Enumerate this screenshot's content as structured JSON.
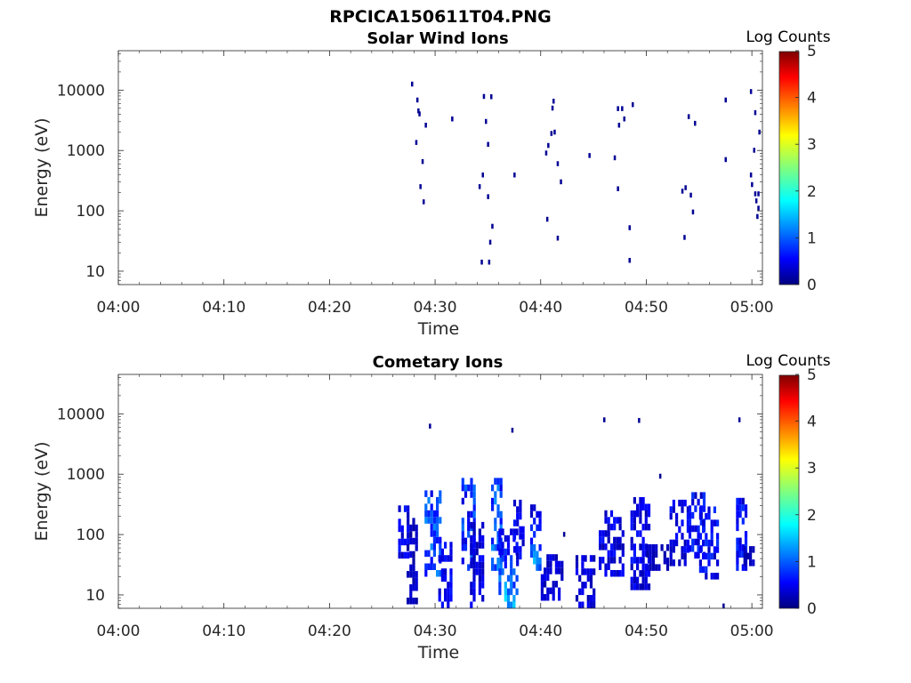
{
  "figure": {
    "title": "RPCICA150611T04.PNG"
  },
  "chart_data": [
    {
      "type": "heatmap",
      "title": "Solar Wind Ions",
      "xlabel": "Time",
      "ylabel": "Energy (eV)",
      "x_ticks": [
        "04:00",
        "04:10",
        "04:20",
        "04:30",
        "04:40",
        "04:50",
        "05:00"
      ],
      "x_range": [
        "04:00",
        "05:01"
      ],
      "y_scale": "log",
      "y_ticks": [
        10,
        100,
        1000,
        10000
      ],
      "y_tick_labels": [
        "10",
        "100",
        "1000",
        "10000"
      ],
      "y_range": [
        6,
        45000
      ],
      "colorbar": {
        "label": "Log Counts",
        "range": [
          0,
          5
        ],
        "ticks": [
          "0",
          "1",
          "2",
          "3",
          "4",
          "5"
        ],
        "colormap": "jet"
      },
      "points": [
        {
          "t": 27.8,
          "e": 12500,
          "c": 0.1
        },
        {
          "t": 28.3,
          "e": 6800,
          "c": 0.1
        },
        {
          "t": 28.4,
          "e": 4500,
          "c": 0.1
        },
        {
          "t": 28.5,
          "e": 4000,
          "c": 0.1
        },
        {
          "t": 28.2,
          "e": 1350,
          "c": 0.1
        },
        {
          "t": 28.8,
          "e": 650,
          "c": 0.1
        },
        {
          "t": 28.6,
          "e": 250,
          "c": 0.1
        },
        {
          "t": 28.9,
          "e": 140,
          "c": 0.1
        },
        {
          "t": 29.1,
          "e": 2600,
          "c": 0.1
        },
        {
          "t": 31.6,
          "e": 3300,
          "c": 0.1
        },
        {
          "t": 34.2,
          "e": 250,
          "c": 0.1
        },
        {
          "t": 34.5,
          "e": 390,
          "c": 0.1
        },
        {
          "t": 34.6,
          "e": 7800,
          "c": 0.1
        },
        {
          "t": 34.8,
          "e": 3000,
          "c": 0.1
        },
        {
          "t": 35.0,
          "e": 1250,
          "c": 0.1
        },
        {
          "t": 35.3,
          "e": 7700,
          "c": 0.1
        },
        {
          "t": 35.0,
          "e": 170,
          "c": 0.1
        },
        {
          "t": 35.4,
          "e": 55,
          "c": 0.1
        },
        {
          "t": 35.2,
          "e": 30,
          "c": 0.1
        },
        {
          "t": 34.4,
          "e": 14,
          "c": 0.1
        },
        {
          "t": 35.1,
          "e": 14,
          "c": 0.1
        },
        {
          "t": 37.5,
          "e": 390,
          "c": 0.1
        },
        {
          "t": 40.5,
          "e": 900,
          "c": 0.1
        },
        {
          "t": 40.7,
          "e": 1200,
          "c": 0.1
        },
        {
          "t": 41.0,
          "e": 1900,
          "c": 0.1
        },
        {
          "t": 41.3,
          "e": 2000,
          "c": 0.1
        },
        {
          "t": 41.1,
          "e": 5000,
          "c": 0.1
        },
        {
          "t": 41.2,
          "e": 6500,
          "c": 0.1
        },
        {
          "t": 41.6,
          "e": 600,
          "c": 0.1
        },
        {
          "t": 41.9,
          "e": 300,
          "c": 0.1
        },
        {
          "t": 40.6,
          "e": 72,
          "c": 0.1
        },
        {
          "t": 41.6,
          "e": 35,
          "c": 0.1
        },
        {
          "t": 44.6,
          "e": 820,
          "c": 0.1
        },
        {
          "t": 47.0,
          "e": 750,
          "c": 0.1
        },
        {
          "t": 47.3,
          "e": 4900,
          "c": 0.1
        },
        {
          "t": 47.7,
          "e": 4900,
          "c": 0.1
        },
        {
          "t": 47.4,
          "e": 2600,
          "c": 0.1
        },
        {
          "t": 47.9,
          "e": 3300,
          "c": 0.1
        },
        {
          "t": 48.7,
          "e": 5700,
          "c": 0.1
        },
        {
          "t": 47.3,
          "e": 230,
          "c": 0.1
        },
        {
          "t": 48.4,
          "e": 52,
          "c": 0.1
        },
        {
          "t": 48.4,
          "e": 15,
          "c": 0.1
        },
        {
          "t": 53.4,
          "e": 210,
          "c": 0.1
        },
        {
          "t": 53.7,
          "e": 240,
          "c": 0.1
        },
        {
          "t": 54.2,
          "e": 180,
          "c": 0.1
        },
        {
          "t": 54.4,
          "e": 95,
          "c": 0.1
        },
        {
          "t": 53.6,
          "e": 36,
          "c": 0.1
        },
        {
          "t": 54.0,
          "e": 3600,
          "c": 0.1
        },
        {
          "t": 54.6,
          "e": 2800,
          "c": 0.1
        },
        {
          "t": 57.5,
          "e": 6800,
          "c": 0.1
        },
        {
          "t": 57.5,
          "e": 700,
          "c": 0.1
        },
        {
          "t": 59.9,
          "e": 9400,
          "c": 0.1
        },
        {
          "t": 60.3,
          "e": 4200,
          "c": 0.1
        },
        {
          "t": 60.7,
          "e": 2000,
          "c": 0.1
        },
        {
          "t": 60.2,
          "e": 1000,
          "c": 0.1
        },
        {
          "t": 59.9,
          "e": 390,
          "c": 0.1
        },
        {
          "t": 60.0,
          "e": 270,
          "c": 0.1
        },
        {
          "t": 60.3,
          "e": 190,
          "c": 0.1
        },
        {
          "t": 60.6,
          "e": 190,
          "c": 0.1
        },
        {
          "t": 60.4,
          "e": 145,
          "c": 0.1
        },
        {
          "t": 60.6,
          "e": 110,
          "c": 0.1
        },
        {
          "t": 60.5,
          "e": 80,
          "c": 0.1
        }
      ]
    },
    {
      "type": "heatmap",
      "title": "Cometary Ions",
      "xlabel": "Time",
      "ylabel": "Energy (eV)",
      "x_ticks": [
        "04:00",
        "04:10",
        "04:20",
        "04:30",
        "04:40",
        "04:50",
        "05:00"
      ],
      "x_range": [
        "04:00",
        "05:01"
      ],
      "y_scale": "log",
      "y_ticks": [
        10,
        100,
        1000,
        10000
      ],
      "y_tick_labels": [
        "10",
        "100",
        "1000",
        "10000"
      ],
      "y_range": [
        6,
        45000
      ],
      "colorbar": {
        "label": "Log Counts",
        "range": [
          0,
          5
        ],
        "ticks": [
          "0",
          "1",
          "2",
          "3",
          "4",
          "5"
        ],
        "colormap": "jet"
      },
      "bursts": [
        {
          "t0": 26.5,
          "t1": 27.5,
          "e_lo": 40,
          "e_hi": 250,
          "c": 0.5
        },
        {
          "t0": 27.3,
          "t1": 28.3,
          "e_lo": 7,
          "e_hi": 150,
          "c": 0.3
        },
        {
          "t0": 29.0,
          "t1": 30.5,
          "e_lo": 20,
          "e_hi": 500,
          "c": 0.9
        },
        {
          "t0": 30.3,
          "t1": 31.5,
          "e_lo": 6,
          "e_hi": 60,
          "c": 0.5
        },
        {
          "t0": 32.5,
          "t1": 33.6,
          "e_lo": 25,
          "e_hi": 800,
          "c": 0.8
        },
        {
          "t0": 33.3,
          "t1": 34.5,
          "e_lo": 6,
          "e_hi": 150,
          "c": 0.5
        },
        {
          "t0": 35.3,
          "t1": 36.3,
          "e_lo": 25,
          "e_hi": 700,
          "c": 0.9
        },
        {
          "t0": 36.0,
          "t1": 37.8,
          "e_lo": 6,
          "e_hi": 100,
          "c": 1.5
        },
        {
          "t0": 37.4,
          "t1": 38.3,
          "e_lo": 30,
          "e_hi": 300,
          "c": 0.5
        },
        {
          "t0": 39.0,
          "t1": 40.0,
          "e_lo": 25,
          "e_hi": 250,
          "c": 1.3
        },
        {
          "t0": 40.0,
          "t1": 42.0,
          "e_lo": 8,
          "e_hi": 45,
          "c": 0.4
        },
        {
          "t0": 43.3,
          "t1": 45.0,
          "e_lo": 6,
          "e_hi": 45,
          "c": 0.4
        },
        {
          "t0": 45.5,
          "t1": 47.8,
          "e_lo": 20,
          "e_hi": 250,
          "c": 0.5
        },
        {
          "t0": 48.5,
          "t1": 50.2,
          "e_lo": 12,
          "e_hi": 400,
          "c": 0.5
        },
        {
          "t0": 50.0,
          "t1": 52.0,
          "e_lo": 25,
          "e_hi": 60,
          "c": 0.3
        },
        {
          "t0": 52.2,
          "t1": 54.0,
          "e_lo": 30,
          "e_hi": 300,
          "c": 0.5
        },
        {
          "t0": 54.0,
          "t1": 55.6,
          "e_lo": 40,
          "e_hi": 500,
          "c": 0.6
        },
        {
          "t0": 55.0,
          "t1": 56.8,
          "e_lo": 18,
          "e_hi": 250,
          "c": 0.6
        },
        {
          "t0": 58.5,
          "t1": 59.4,
          "e_lo": 25,
          "e_hi": 400,
          "c": 0.6
        },
        {
          "t0": 59.2,
          "t1": 60.2,
          "e_lo": 30,
          "e_hi": 60,
          "c": 0.3
        }
      ],
      "points": [
        {
          "t": 29.5,
          "e": 6200,
          "c": 0.1
        },
        {
          "t": 37.3,
          "e": 5300,
          "c": 0.1
        },
        {
          "t": 46.0,
          "e": 7900,
          "c": 0.1
        },
        {
          "t": 49.3,
          "e": 7700,
          "c": 0.1
        },
        {
          "t": 51.3,
          "e": 920,
          "c": 0.1
        },
        {
          "t": 58.8,
          "e": 7900,
          "c": 0.1
        },
        {
          "t": 42.2,
          "e": 100,
          "c": 0.1
        },
        {
          "t": 57.3,
          "e": 6.5,
          "c": 0.1
        }
      ]
    }
  ]
}
